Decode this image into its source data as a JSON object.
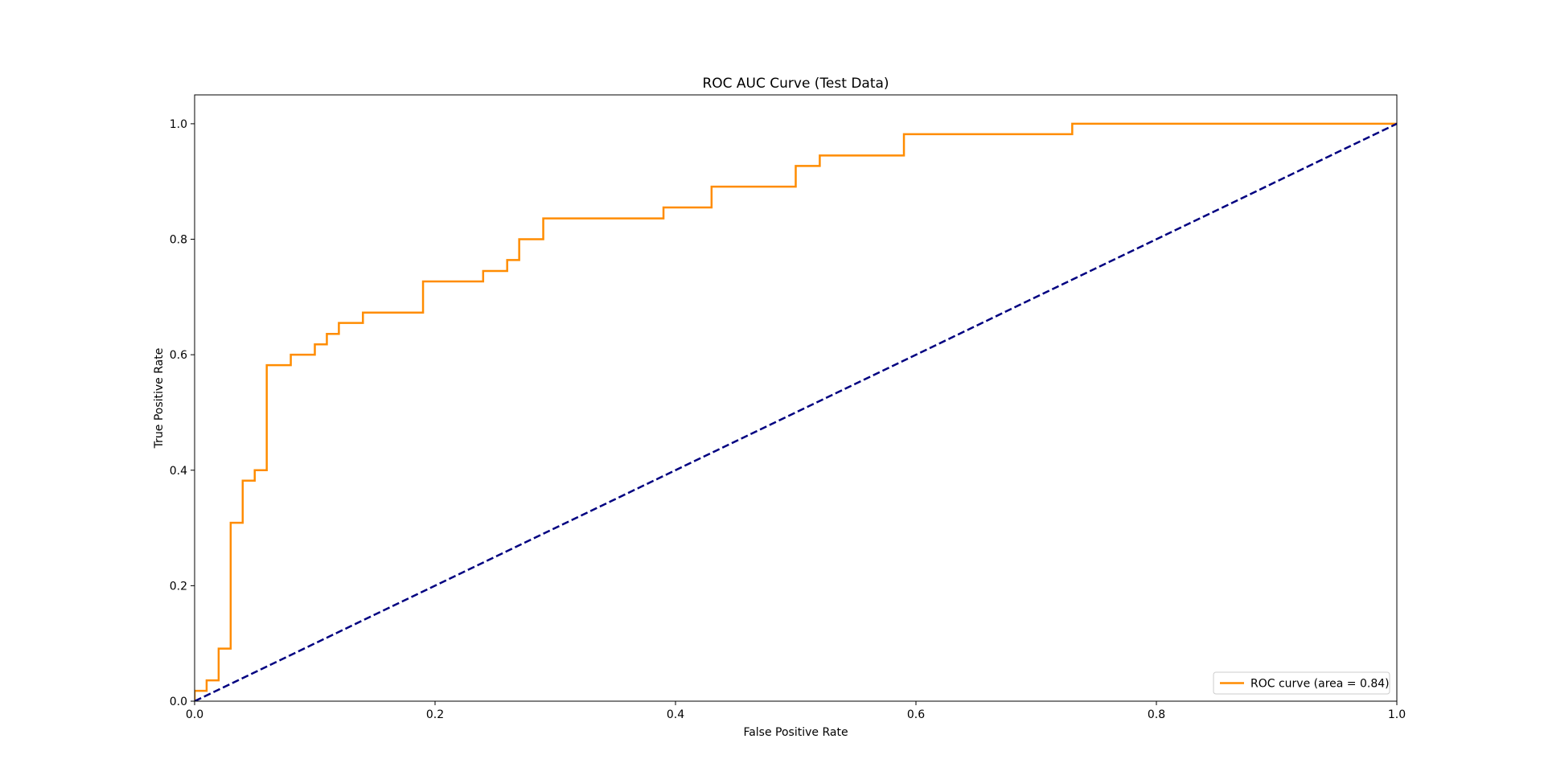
{
  "chart_data": {
    "type": "line",
    "title": "ROC AUC Curve (Test Data)",
    "xlabel": "False Positive Rate",
    "ylabel": "True Positive Rate",
    "xlim": [
      0.0,
      1.0
    ],
    "ylim": [
      0.0,
      1.05
    ],
    "xticks": [
      0.0,
      0.2,
      0.4,
      0.6,
      0.8,
      1.0
    ],
    "yticks": [
      0.0,
      0.2,
      0.4,
      0.6,
      0.8,
      1.0
    ],
    "xtick_labels": [
      "0.0",
      "0.2",
      "0.4",
      "0.6",
      "0.8",
      "1.0"
    ],
    "ytick_labels": [
      "0.0",
      "0.2",
      "0.4",
      "0.6",
      "0.8",
      "1.0"
    ],
    "grid": false,
    "legend_position": "lower-right",
    "series": [
      {
        "name": "ROC curve (area = 0.84)",
        "color": "#ff8c00",
        "style": "solid",
        "x": [
          0.0,
          0.0,
          0.01,
          0.01,
          0.02,
          0.02,
          0.03,
          0.03,
          0.04,
          0.04,
          0.05,
          0.05,
          0.06,
          0.06,
          0.08,
          0.08,
          0.1,
          0.1,
          0.11,
          0.11,
          0.12,
          0.12,
          0.14,
          0.14,
          0.19,
          0.19,
          0.24,
          0.24,
          0.26,
          0.26,
          0.27,
          0.27,
          0.29,
          0.29,
          0.39,
          0.39,
          0.43,
          0.43,
          0.5,
          0.5,
          0.52,
          0.52,
          0.59,
          0.59,
          0.73,
          0.73,
          1.0
        ],
        "y": [
          0.0,
          0.018,
          0.018,
          0.036,
          0.036,
          0.091,
          0.091,
          0.309,
          0.309,
          0.382,
          0.382,
          0.4,
          0.4,
          0.582,
          0.582,
          0.6,
          0.6,
          0.618,
          0.618,
          0.636,
          0.636,
          0.655,
          0.655,
          0.673,
          0.673,
          0.727,
          0.727,
          0.745,
          0.745,
          0.764,
          0.764,
          0.8,
          0.8,
          0.836,
          0.836,
          0.855,
          0.855,
          0.891,
          0.891,
          0.927,
          0.927,
          0.945,
          0.945,
          0.982,
          0.982,
          1.0,
          1.0
        ]
      },
      {
        "name": "",
        "color": "#000080",
        "style": "dashed",
        "x": [
          0.0,
          1.0
        ],
        "y": [
          0.0,
          1.0
        ]
      }
    ]
  }
}
